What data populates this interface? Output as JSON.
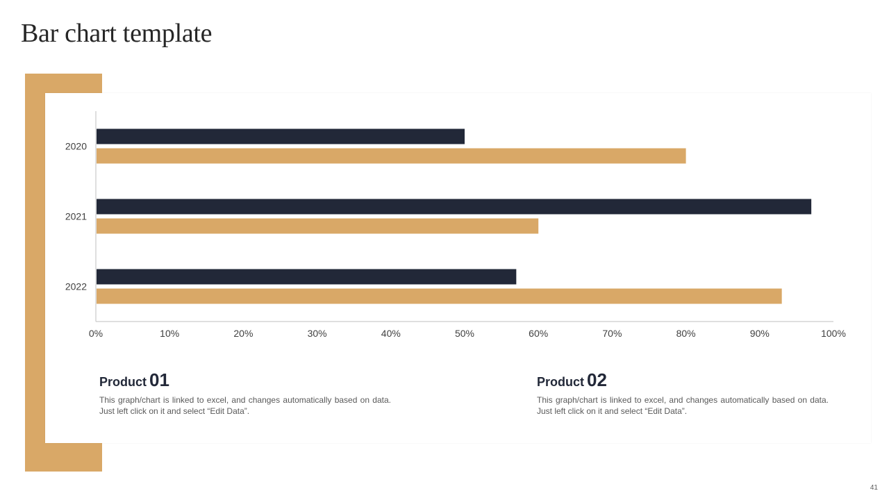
{
  "slide": {
    "title": "Bar chart template",
    "page_number": "41"
  },
  "colors": {
    "accent": "#D9A867",
    "dark": "#222838",
    "text": "#595959"
  },
  "chart_data": {
    "type": "bar",
    "orientation": "horizontal",
    "categories": [
      "2020",
      "2021",
      "2022"
    ],
    "series": [
      {
        "name": "Product 01",
        "color": "#222838",
        "values": [
          50,
          97,
          57
        ]
      },
      {
        "name": "Product 02",
        "color": "#D9A867",
        "values": [
          80,
          60,
          93
        ]
      }
    ],
    "xlim": [
      0,
      100
    ],
    "x_ticks": [
      0,
      10,
      20,
      30,
      40,
      50,
      60,
      70,
      80,
      90,
      100
    ],
    "x_tick_labels": [
      "0%",
      "10%",
      "20%",
      "30%",
      "40%",
      "50%",
      "60%",
      "70%",
      "80%",
      "90%",
      "100%"
    ],
    "title": "",
    "xlabel": "",
    "ylabel": "",
    "grid": false
  },
  "products": [
    {
      "word": "Product",
      "number": "01",
      "description": "This graph/chart is linked to excel, and changes automatically based on data. Just left click on it and select “Edit Data”."
    },
    {
      "word": "Product",
      "number": "02",
      "description": "This graph/chart is linked to excel, and changes automatically based on data. Just left click on it and select “Edit Data”."
    }
  ]
}
